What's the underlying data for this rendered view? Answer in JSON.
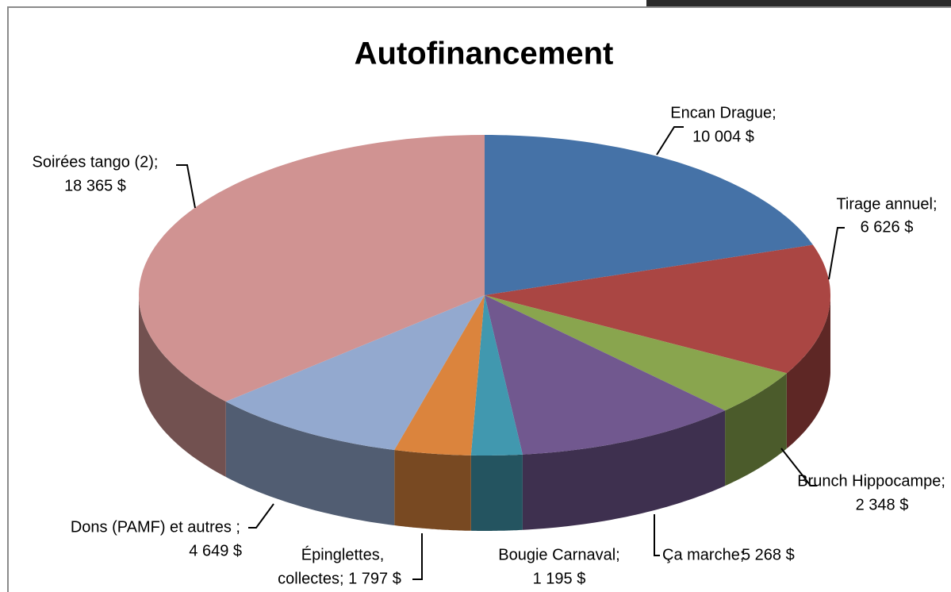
{
  "chart_data": {
    "type": "pie3d",
    "title": "Autofinancement",
    "categories": [
      "Encan Drague;",
      "Tirage annuel;",
      "Brunch Hippocampe;",
      "Ça marche;",
      "Bougie Carnaval;",
      "Épinglettes,",
      "Dons (PAMF) et autres ;",
      "Soirées tango (2);"
    ],
    "values": [
      10004,
      6626,
      2348,
      5268,
      1195,
      1797,
      4649,
      18365
    ],
    "value_labels": [
      "10 004 $",
      "6 626 $",
      "2 348 $",
      "5 268 $",
      "1 195 $",
      "collectes; 1 797 $",
      "4 649 $",
      "18 365 $"
    ],
    "colors": [
      "#4572a7",
      "#aa4643",
      "#89a54e",
      "#71588f",
      "#4198af",
      "#db843d",
      "#93a9cf",
      "#d09392"
    ]
  }
}
